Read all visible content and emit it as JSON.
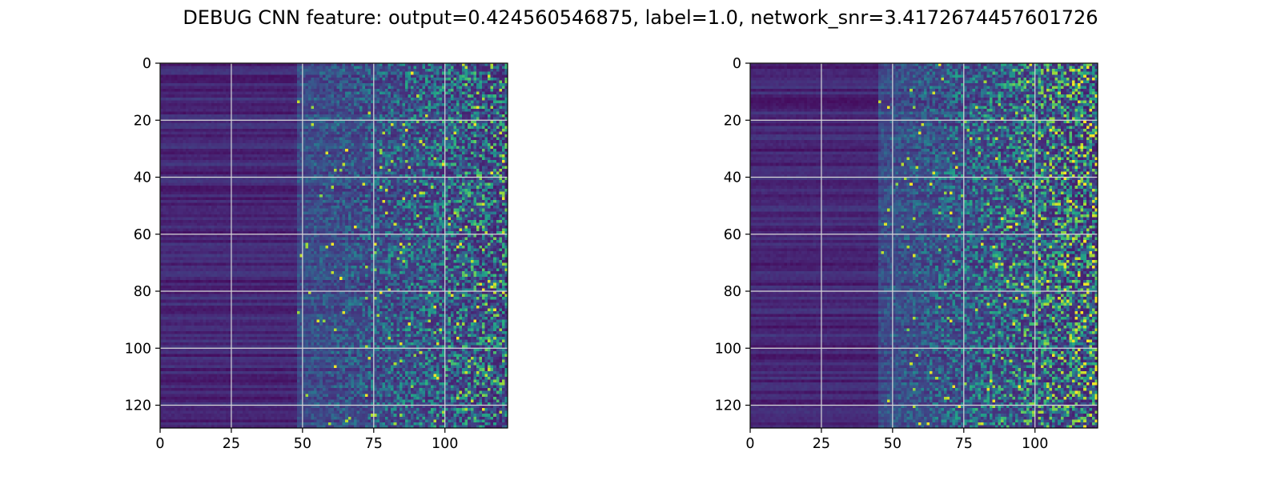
{
  "figure": {
    "title": "DEBUG CNN feature: output=0.424560546875, label=1.0, network_snr=3.4172674457601726"
  },
  "chart_data": [
    {
      "type": "heatmap",
      "name": "left",
      "title": "",
      "xlabel": "",
      "ylabel": "",
      "xlim": [
        0,
        122
      ],
      "ylim": [
        128,
        0
      ],
      "x_ticks": [
        0,
        25,
        50,
        75,
        100
      ],
      "y_ticks": [
        0,
        20,
        40,
        60,
        80,
        100,
        120
      ],
      "grid": true,
      "colormap": "viridis",
      "rows": 128,
      "cols": 122,
      "pattern": "dark smooth horizontal bands for columns 0-50, brighter speckled noise increasing from column 50 to 122"
    },
    {
      "type": "heatmap",
      "name": "right",
      "title": "",
      "xlabel": "",
      "ylabel": "",
      "xlim": [
        0,
        122
      ],
      "ylim": [
        128,
        0
      ],
      "x_ticks": [
        0,
        25,
        50,
        75,
        100
      ],
      "y_ticks": [
        0,
        20,
        40,
        60,
        80,
        100,
        120
      ],
      "grid": true,
      "colormap": "viridis",
      "rows": 128,
      "cols": 122,
      "pattern": "dark smooth horizontal bands for columns 0-50, brighter speckled noise increasing from column 50 to 122"
    }
  ],
  "colors": {
    "viridis_low": "#440154",
    "viridis_mid": "#21918c",
    "viridis_high": "#fde725",
    "grid": "#d8d8d8"
  }
}
